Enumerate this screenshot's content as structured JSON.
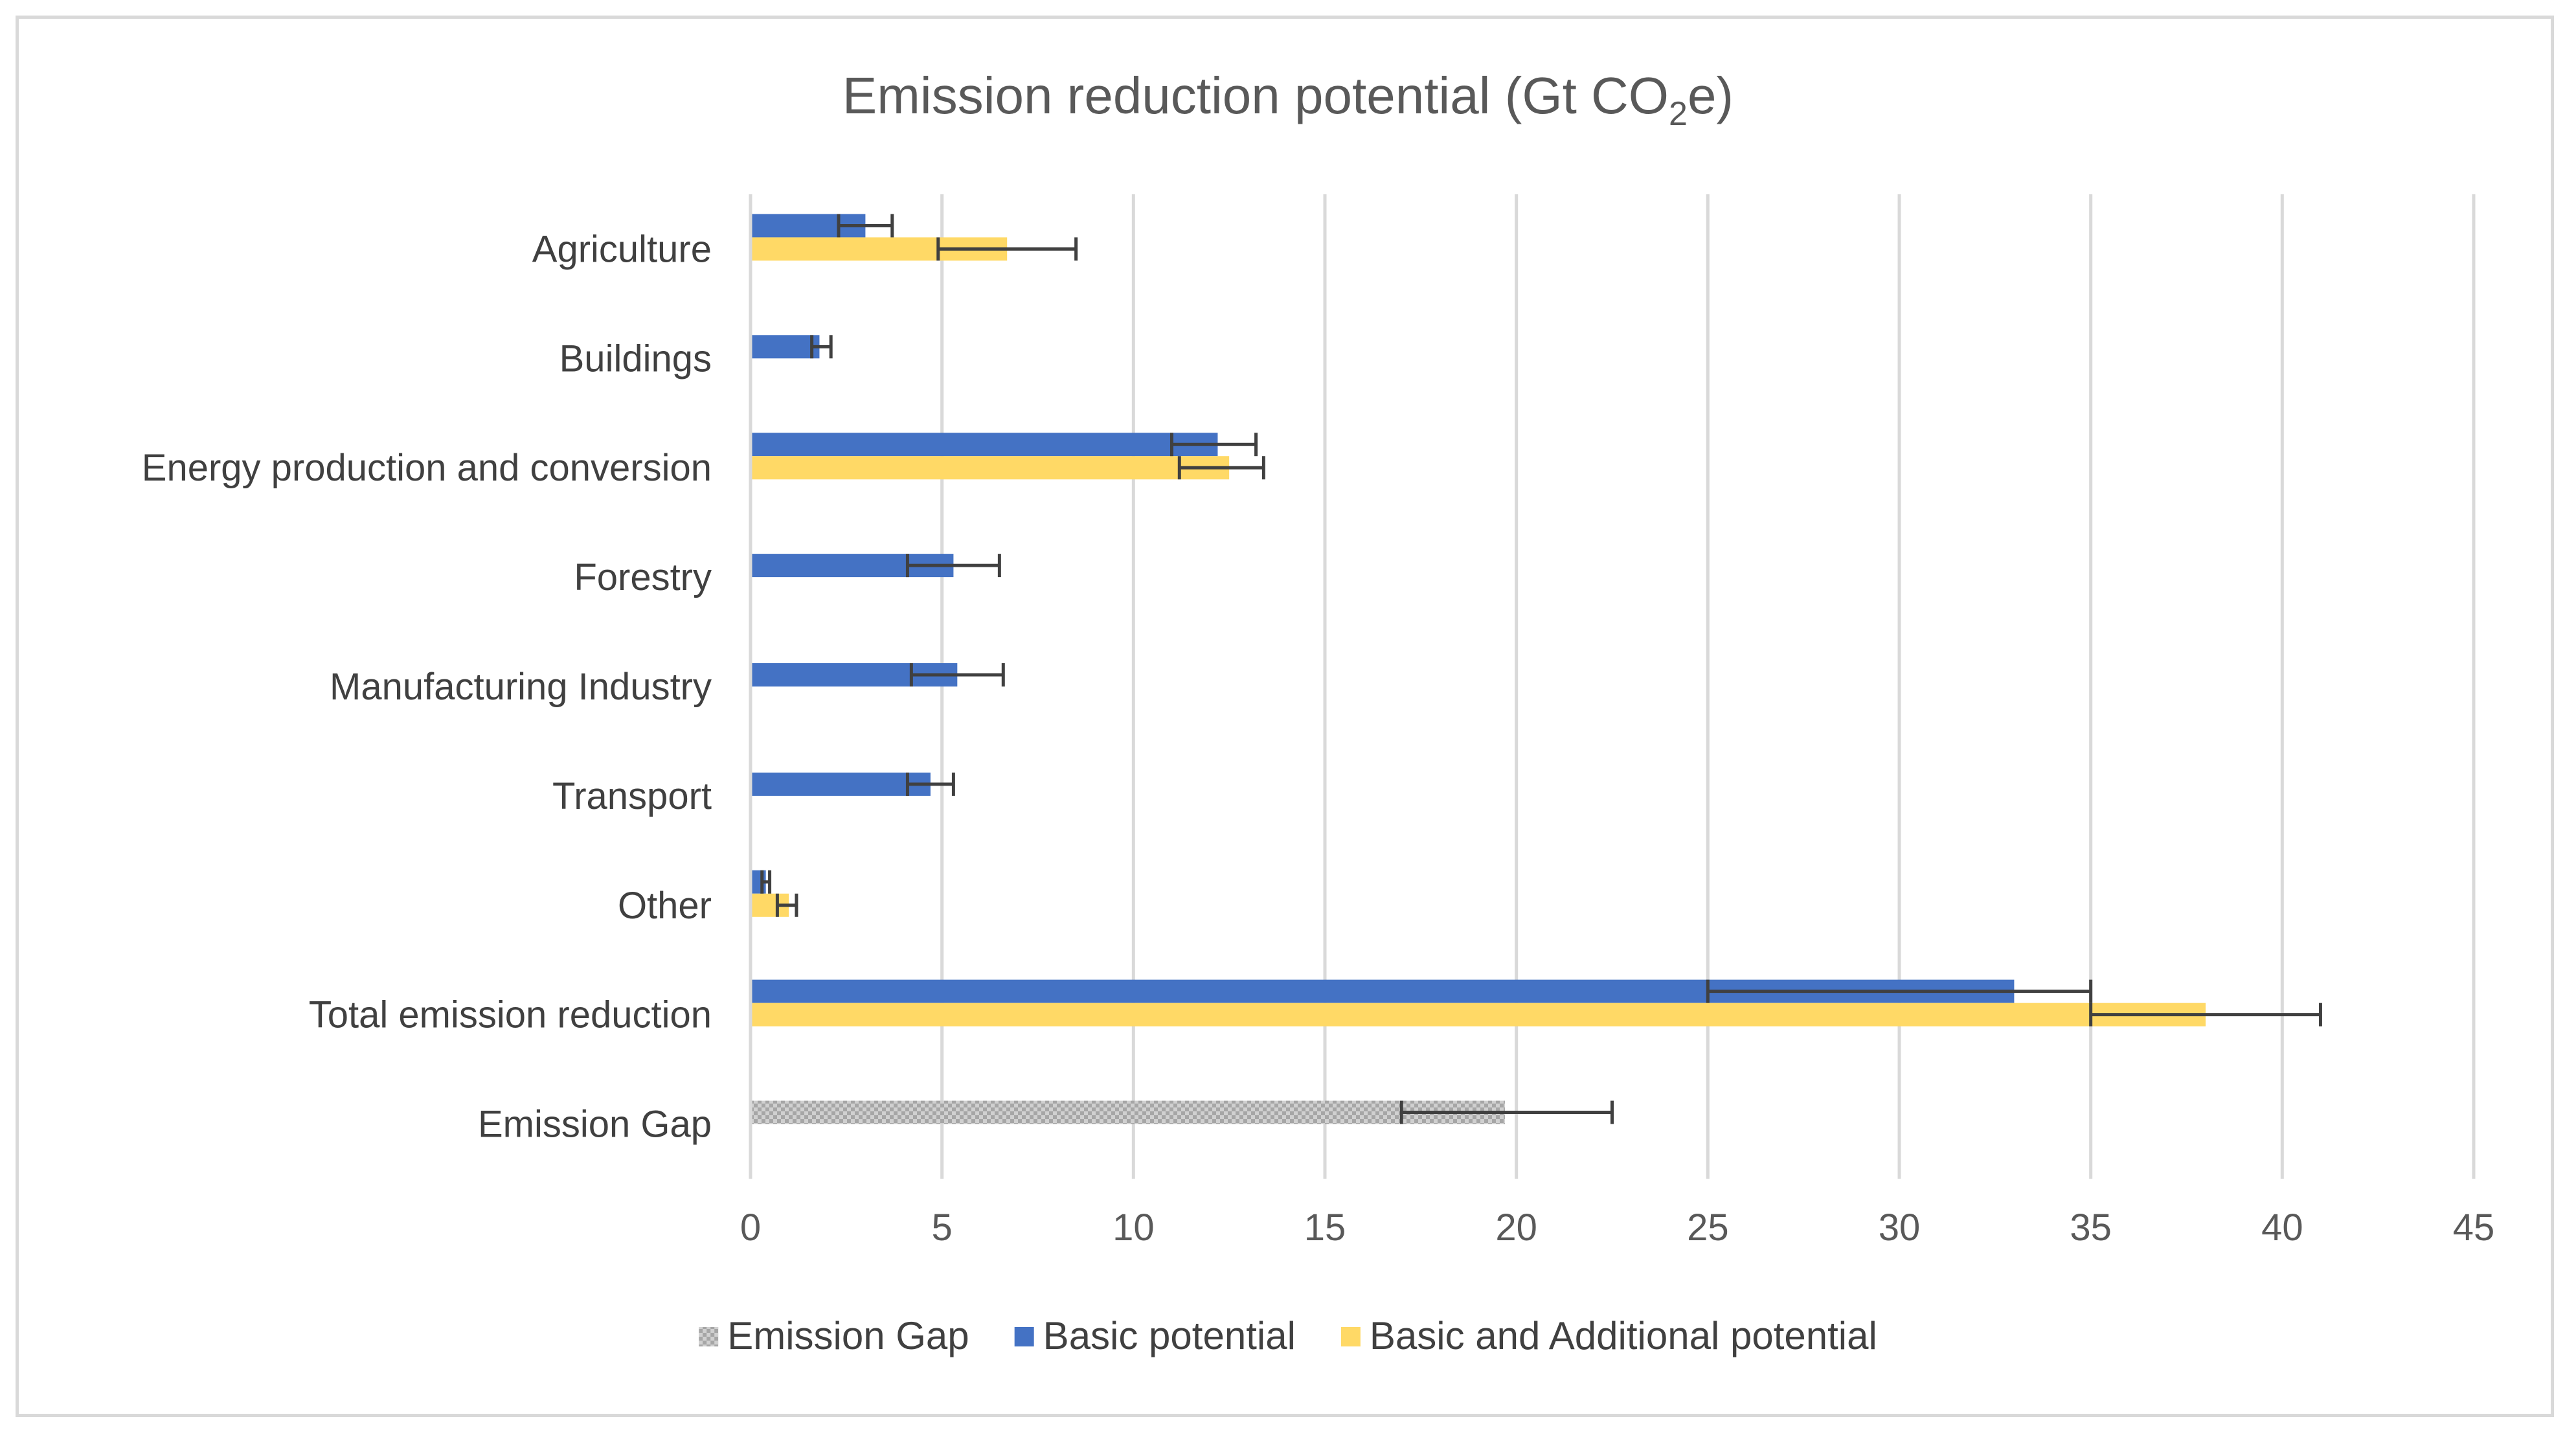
{
  "chart_data": {
    "type": "bar",
    "orientation": "horizontal",
    "title": {
      "main": "Emission reduction potential (Gt CO",
      "subscript": "2",
      "suffix": "e)"
    },
    "categories": [
      "Agriculture",
      "Buildings",
      "Energy production and conversion",
      "Forestry",
      "Manufacturing Industry",
      "Transport",
      "Other",
      "Total emission reduction",
      "Emission Gap"
    ],
    "series": [
      {
        "name": "Emission Gap",
        "color": "#bfbfbf",
        "pattern": "checker",
        "values": [
          null,
          null,
          null,
          null,
          null,
          null,
          null,
          null,
          19.7
        ],
        "error_low": [
          null,
          null,
          null,
          null,
          null,
          null,
          null,
          null,
          17.0
        ],
        "error_high": [
          null,
          null,
          null,
          null,
          null,
          null,
          null,
          null,
          22.5
        ]
      },
      {
        "name": "Basic potential",
        "color": "#4472c4",
        "values": [
          3.0,
          1.8,
          12.2,
          5.3,
          5.4,
          4.7,
          0.4,
          33.0,
          null
        ],
        "error_low": [
          2.3,
          1.6,
          11.0,
          4.1,
          4.2,
          4.1,
          0.3,
          25.0,
          null
        ],
        "error_high": [
          3.7,
          2.1,
          13.2,
          6.5,
          6.6,
          5.3,
          0.5,
          35.0,
          null
        ]
      },
      {
        "name": "Basic and Additional potential",
        "color": "#ffd966",
        "values": [
          6.7,
          null,
          12.5,
          null,
          null,
          null,
          1.0,
          38.0,
          null
        ],
        "error_low": [
          4.9,
          null,
          11.2,
          null,
          null,
          null,
          0.7,
          35.0,
          null
        ],
        "error_high": [
          8.5,
          null,
          13.4,
          null,
          null,
          null,
          1.2,
          41.0,
          null
        ]
      }
    ],
    "xlim": [
      0,
      45
    ],
    "xticks": [
      "0",
      "5",
      "10",
      "15",
      "20",
      "25",
      "30",
      "35",
      "40",
      "45"
    ],
    "xlabel": "",
    "ylabel": "",
    "grid": "vertical",
    "legend_position": "bottom",
    "error_bar_color": "#404040"
  }
}
